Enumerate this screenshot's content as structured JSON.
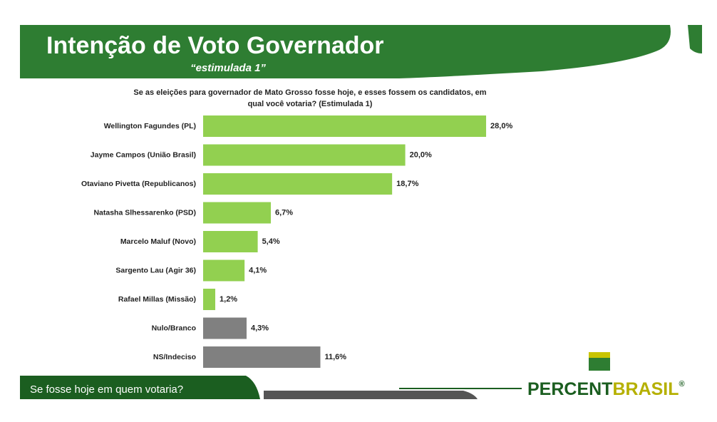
{
  "chart_data": {
    "type": "bar",
    "orientation": "horizontal",
    "title": "Intenção de Voto Governador",
    "subtitle": "“estimulada 1”",
    "question": "Se as eleições para governador de Mato Grosso fosse hoje, e esses fossem os candidatos, em qual você votaria? (Estimulada 1)",
    "categories": [
      "Wellington Fagundes (PL)",
      "Jayme Campos (União Brasil)",
      "Otaviano Pivetta (Republicanos)",
      "Natasha Slhessarenko (PSD)",
      "Marcelo Maluf (Novo)",
      "Sargento Lau (Agir 36)",
      "Rafael Millas (Missão)",
      "Nulo/Branco",
      "NS/Indeciso"
    ],
    "values": [
      28.0,
      20.0,
      18.7,
      6.7,
      5.4,
      4.1,
      1.2,
      4.3,
      11.6
    ],
    "value_labels": [
      "28,0%",
      "20,0%",
      "18,7%",
      "6,7%",
      "5,4%",
      "4,1%",
      "1,2%",
      "4,3%",
      "11,6%"
    ],
    "colors": [
      "#92d050",
      "#92d050",
      "#92d050",
      "#92d050",
      "#92d050",
      "#92d050",
      "#92d050",
      "#808080",
      "#808080"
    ],
    "footer": "Se fosse hoje em quem votaria?",
    "logo": {
      "part1": "PERCENT",
      "part2": "BRASIL",
      "mark": "®"
    }
  }
}
